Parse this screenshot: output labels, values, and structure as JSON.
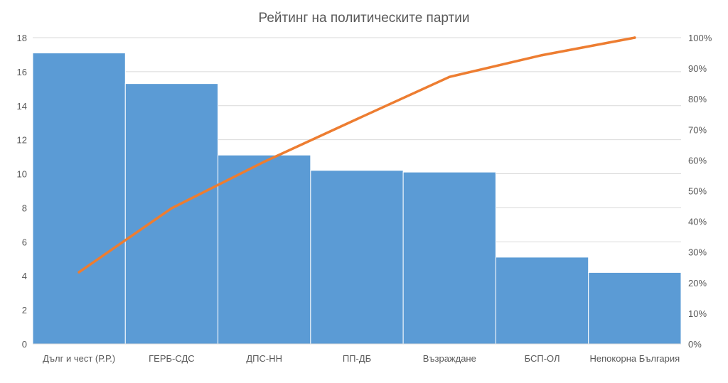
{
  "chart_data": {
    "type": "bar",
    "title": "Рейтинг на политическите партии",
    "categories": [
      "Дълг и чест (Р.Р.)",
      "ГЕРБ-СДС",
      "ДПС-НН",
      "ПП-ДБ",
      "Възраждане",
      "БСП-ОЛ",
      "Непокорна България"
    ],
    "series": [
      {
        "type": "bar",
        "axis": "left",
        "values": [
          17.1,
          15.3,
          11.1,
          10.2,
          10.1,
          5.1,
          4.2
        ]
      },
      {
        "type": "line",
        "axis": "right",
        "values": [
          23.4,
          44.3,
          59.5,
          73.4,
          87.2,
          94.3,
          100
        ]
      }
    ],
    "ylim_left": [
      0,
      18
    ],
    "ylim_right": [
      0,
      100
    ],
    "yticks_left": [
      "0",
      "2",
      "4",
      "6",
      "8",
      "10",
      "12",
      "14",
      "16",
      "18"
    ],
    "yticks_right": [
      "0%",
      "10%",
      "20%",
      "30%",
      "40%",
      "50%",
      "60%",
      "70%",
      "80%",
      "90%",
      "100%"
    ],
    "grid": true,
    "legend": "none",
    "colors": {
      "bars": "#5b9bd5",
      "line": "#ed7d31",
      "grid": "#d9d9d9",
      "text": "#595959"
    }
  }
}
